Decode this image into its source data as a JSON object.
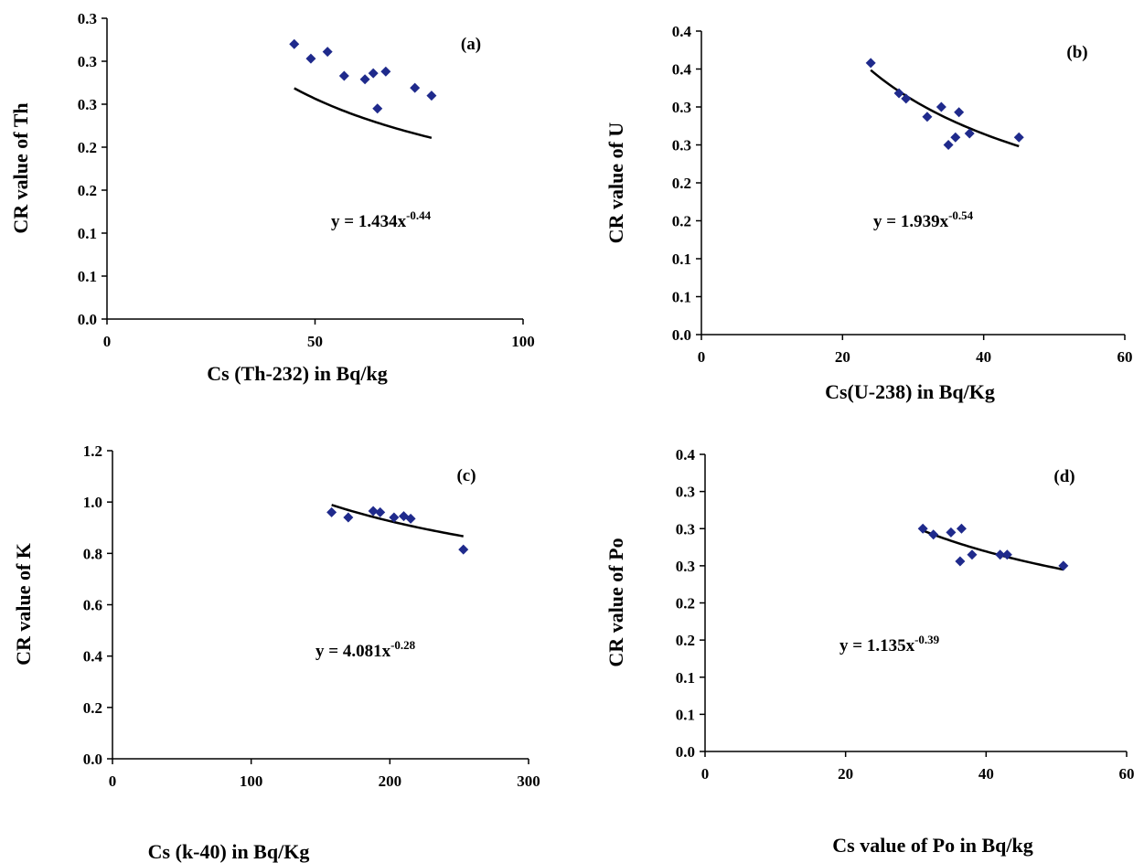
{
  "chart_data": [
    {
      "type": "scatter",
      "panel_label": "(a)",
      "xlabel": "Cs (Th-232) in Bq/kg",
      "ylabel": "CR value of Th",
      "xlim": [
        0,
        100
      ],
      "ylim": [
        0,
        0.35
      ],
      "x_ticks": [
        0,
        50,
        100
      ],
      "x_tick_labels": [
        "0",
        "50",
        "100"
      ],
      "y_ticks": [
        0,
        0.05,
        0.1,
        0.15,
        0.2,
        0.25,
        0.3,
        0.35
      ],
      "y_tick_labels": [
        "0.0",
        "0.1",
        "0.1",
        "0.2",
        "0.2",
        "0.3",
        "0.3",
        "0.3"
      ],
      "points": [
        [
          45,
          0.32
        ],
        [
          49,
          0.303
        ],
        [
          53,
          0.311
        ],
        [
          57,
          0.283
        ],
        [
          62,
          0.279
        ],
        [
          64,
          0.286
        ],
        [
          65,
          0.245
        ],
        [
          67,
          0.288
        ],
        [
          74,
          0.269
        ],
        [
          78,
          0.26
        ]
      ],
      "trendline": {
        "type": "power",
        "a": 1.434,
        "b": -0.44
      },
      "equation": {
        "base": "y = 1.434x",
        "exponent": "-0.44"
      }
    },
    {
      "type": "scatter",
      "panel_label": "(b)",
      "xlabel": "Cs(U-238) in Bq/Kg",
      "ylabel": "CR value of U",
      "xlim": [
        0,
        60
      ],
      "ylim": [
        0,
        0.4
      ],
      "x_ticks": [
        0,
        20,
        40,
        60
      ],
      "x_tick_labels": [
        "0",
        "20",
        "40",
        "60"
      ],
      "y_ticks": [
        0,
        0.05,
        0.1,
        0.15,
        0.2,
        0.25,
        0.3,
        0.35,
        0.4
      ],
      "y_tick_labels": [
        "0.0",
        "0.1",
        "0.1",
        "0.2",
        "0.2",
        "0.3",
        "0.3",
        "0.4",
        "0.4"
      ],
      "points": [
        [
          24,
          0.358
        ],
        [
          28,
          0.318
        ],
        [
          29,
          0.311
        ],
        [
          32,
          0.287
        ],
        [
          34,
          0.3
        ],
        [
          35,
          0.25
        ],
        [
          36,
          0.26
        ],
        [
          36.5,
          0.293
        ],
        [
          38,
          0.265
        ],
        [
          45,
          0.26
        ]
      ],
      "trendline": {
        "type": "power",
        "a": 1.939,
        "b": -0.54
      },
      "equation": {
        "base": "y = 1.939x",
        "exponent": "-0.54"
      }
    },
    {
      "type": "scatter",
      "panel_label": "(c)",
      "xlabel": "Cs (k-40) in Bq/Kg",
      "ylabel": "CR value of K",
      "xlim": [
        0,
        300
      ],
      "ylim": [
        0,
        1.2
      ],
      "x_ticks": [
        0,
        100,
        200,
        300
      ],
      "x_tick_labels": [
        "0",
        "100",
        "200",
        "300"
      ],
      "y_ticks": [
        0,
        0.2,
        0.4,
        0.6,
        0.8,
        1.0,
        1.2
      ],
      "y_tick_labels": [
        "0.0",
        "0.2",
        "0.4",
        "0.6",
        "0.8",
        "1.0",
        "1.2"
      ],
      "points": [
        [
          158,
          0.96
        ],
        [
          170,
          0.94
        ],
        [
          188,
          0.965
        ],
        [
          193,
          0.96
        ],
        [
          203,
          0.94
        ],
        [
          210,
          0.945
        ],
        [
          215,
          0.935
        ],
        [
          253,
          0.815
        ]
      ],
      "trendline": {
        "type": "power",
        "a": 4.081,
        "b": -0.28
      },
      "equation": {
        "base": "y = 4.081x",
        "exponent": "-0.28"
      }
    },
    {
      "type": "scatter",
      "panel_label": "(d)",
      "xlabel": "Cs value of Po in Bq/kg",
      "ylabel": "CR value of Po",
      "xlim": [
        0,
        60
      ],
      "ylim": [
        0,
        0.4
      ],
      "x_ticks": [
        0,
        20,
        40,
        60
      ],
      "x_tick_labels": [
        "0",
        "20",
        "40",
        "60"
      ],
      "y_ticks": [
        0,
        0.05,
        0.1,
        0.15,
        0.2,
        0.25,
        0.3,
        0.35,
        0.4
      ],
      "y_tick_labels": [
        "0.0",
        "0.1",
        "0.1",
        "0.2",
        "0.2",
        "0.3",
        "0.3",
        "0.3",
        "0.4"
      ],
      "points": [
        [
          31,
          0.3
        ],
        [
          32.5,
          0.292
        ],
        [
          35,
          0.295
        ],
        [
          36.3,
          0.256
        ],
        [
          36.5,
          0.3
        ],
        [
          38,
          0.265
        ],
        [
          42,
          0.265
        ],
        [
          43,
          0.265
        ],
        [
          51,
          0.25
        ]
      ],
      "trendline": {
        "type": "power",
        "a": 1.135,
        "b": -0.39
      },
      "equation": {
        "base": "y = 1.135x",
        "exponent": "-0.39"
      }
    }
  ]
}
